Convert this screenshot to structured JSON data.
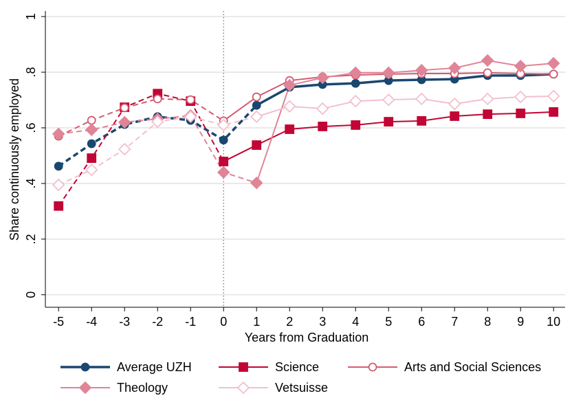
{
  "chart_data": {
    "type": "line",
    "x_label": "Years from Graduation",
    "y_label": "Share continuously employed",
    "x": [
      -5,
      -4,
      -3,
      -2,
      -1,
      0,
      1,
      2,
      3,
      4,
      5,
      6,
      7,
      8,
      9,
      10
    ],
    "xlim": [
      -5.4,
      10.35
    ],
    "ylim": [
      -0.045,
      1.02
    ],
    "xticks": [
      -5,
      -4,
      -3,
      -2,
      -1,
      0,
      1,
      2,
      3,
      4,
      5,
      6,
      7,
      8,
      9,
      10
    ],
    "yticks": [
      0,
      {
        "value": 0.2,
        "label": ".2"
      },
      {
        "value": 0.4,
        "label": ".4"
      },
      {
        "value": 0.6,
        "label": ".6"
      },
      {
        "value": 0.8,
        "label": ".8"
      },
      1
    ],
    "grid": true,
    "vline": 0,
    "legend_position": "bottom",
    "series": [
      {
        "name": "Average UZH",
        "color": "#1a476f",
        "marker": "circle",
        "filled": true,
        "width": 3.5,
        "dashed_until": 1,
        "values": [
          0.462,
          0.543,
          0.612,
          0.64,
          0.627,
          0.556,
          0.681,
          0.746,
          0.756,
          0.76,
          0.77,
          0.773,
          0.775,
          0.788,
          0.788,
          0.793
        ]
      },
      {
        "name": "Science",
        "color": "#c10534",
        "marker": "square",
        "filled": true,
        "width": 2,
        "dashed_until": 0,
        "values": [
          0.319,
          0.491,
          0.674,
          0.723,
          0.696,
          0.479,
          0.538,
          0.595,
          0.605,
          0.61,
          0.622,
          0.625,
          0.642,
          0.649,
          0.652,
          0.657
        ]
      },
      {
        "name": "Arts and Social Sciences",
        "color": "#d45a72",
        "marker": "circle",
        "filled": false,
        "width": 2,
        "dashed_until": 0,
        "values": [
          0.57,
          0.627,
          0.672,
          0.704,
          0.701,
          0.625,
          0.711,
          0.77,
          0.783,
          0.79,
          0.793,
          0.795,
          0.795,
          0.798,
          0.795,
          0.793
        ]
      },
      {
        "name": "Theology",
        "color": "#e08497",
        "marker": "diamond",
        "filled": true,
        "width": 2,
        "dashed_until": 1,
        "values": [
          0.578,
          0.593,
          0.62,
          0.632,
          0.644,
          0.44,
          0.402,
          0.753,
          0.78,
          0.798,
          0.798,
          0.807,
          0.815,
          0.842,
          0.822,
          0.832
        ]
      },
      {
        "name": "Vetsuisse",
        "color": "#f2c0cc",
        "marker": "diamond",
        "filled": false,
        "width": 2,
        "dashed_until": 1,
        "values": [
          0.395,
          0.449,
          0.523,
          0.622,
          0.64,
          0.61,
          0.64,
          0.677,
          0.669,
          0.696,
          0.701,
          0.704,
          0.686,
          0.704,
          0.711,
          0.714
        ]
      }
    ]
  }
}
